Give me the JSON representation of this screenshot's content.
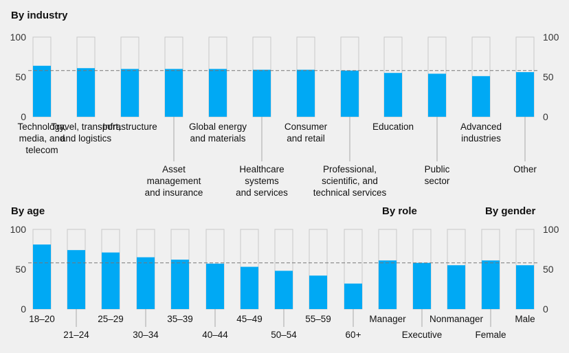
{
  "colors": {
    "bar": "#00a9f4",
    "outline": "#c8c8c8",
    "reference_line": "#777777",
    "background": "#f0f0f0"
  },
  "chart_data": [
    {
      "type": "bar",
      "title": "By industry",
      "ylim": [
        0,
        100
      ],
      "yticks": [
        0,
        50,
        100
      ],
      "reference_value": 58,
      "categories": [
        [
          "Technology,",
          "media, and",
          "telecom"
        ],
        [
          "Travel, transport,",
          "and logistics"
        ],
        [
          "Infrastructure"
        ],
        [
          "Asset",
          "management",
          "and insurance"
        ],
        [
          "Global energy",
          "and materials"
        ],
        [
          "Healthcare",
          "systems",
          "and services"
        ],
        [
          "Consumer",
          "and retail"
        ],
        [
          "Professional,",
          "scientific, and",
          "technical services"
        ],
        [
          "Education"
        ],
        [
          "Public",
          "sector"
        ],
        [
          "Advanced",
          "industries"
        ],
        [
          "Other"
        ]
      ],
      "values": [
        64,
        61,
        60,
        60,
        60,
        59,
        59,
        58,
        55,
        54,
        51,
        56
      ]
    },
    {
      "type": "bar",
      "title": "By age",
      "ylim": [
        0,
        100
      ],
      "yticks": [
        0,
        50,
        100
      ],
      "reference_value": 58,
      "categories": [
        [
          "18–20"
        ],
        [
          "21–24"
        ],
        [
          "25–29"
        ],
        [
          "30–34"
        ],
        [
          "35–39"
        ],
        [
          "40–44"
        ],
        [
          "45–49"
        ],
        [
          "50–54"
        ],
        [
          "55–59"
        ],
        [
          "60+"
        ]
      ],
      "values": [
        81,
        74,
        71,
        65,
        62,
        57,
        53,
        48,
        42,
        32
      ]
    },
    {
      "type": "bar",
      "title": "By role",
      "ylim": [
        0,
        100
      ],
      "reference_value": 58,
      "categories": [
        [
          "Manager"
        ],
        [
          "Executive"
        ],
        [
          "Nonmanager"
        ]
      ],
      "values": [
        61,
        58,
        55
      ]
    },
    {
      "type": "bar",
      "title": "By gender",
      "ylim": [
        0,
        100
      ],
      "yticks": [
        0,
        50,
        100
      ],
      "reference_value": 58,
      "categories": [
        [
          "Female"
        ],
        [
          "Male"
        ]
      ],
      "values": [
        61,
        55
      ]
    }
  ]
}
